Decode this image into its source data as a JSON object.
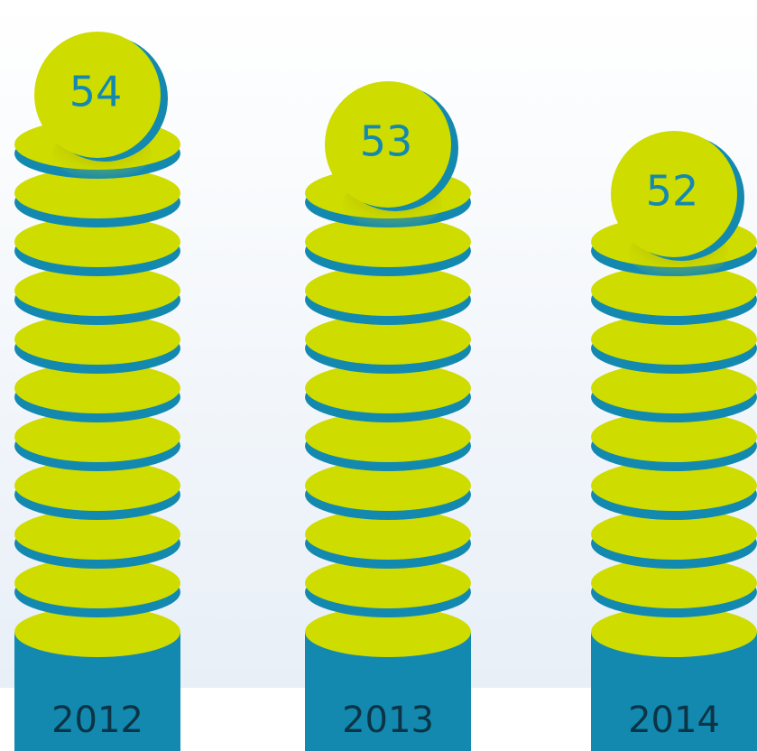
{
  "chart_data": {
    "type": "bar",
    "categories": [
      "2012",
      "2013",
      "2014"
    ],
    "values": [
      54,
      53,
      52
    ],
    "color": "#cfdc00",
    "rim_color": "#1389b0"
  }
}
